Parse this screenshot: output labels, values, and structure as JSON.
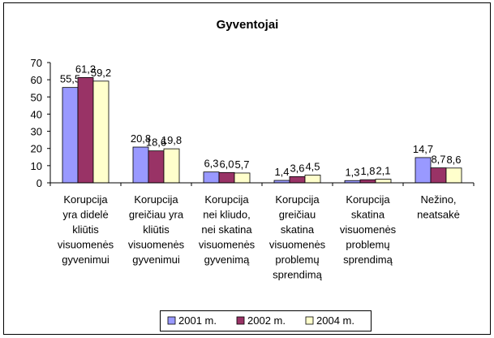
{
  "chart_data": {
    "type": "bar",
    "title": "Gyventojai",
    "categories": [
      [
        "Korupcija",
        "yra didelė",
        "kliūtis",
        "visuomenės",
        "gyvenimui"
      ],
      [
        "Korupcija",
        "greičiau yra",
        "kliūtis",
        "visuomenės",
        "gyvenimui"
      ],
      [
        "Korupcija",
        "nei kliudo,",
        "nei skatina",
        "visuomenės",
        "gyvenimą"
      ],
      [
        "Korupcija",
        "greičiau",
        "skatina",
        "visuomenės",
        "problemų",
        "sprendimą"
      ],
      [
        "Korupcija",
        "skatina",
        "visuomenės",
        "problemų",
        "sprendimą"
      ],
      [
        "Nežino,",
        "neatsakė"
      ]
    ],
    "series": [
      {
        "name": "2001 m.",
        "color": "#9999ff",
        "values": [
          55.5,
          20.8,
          6.3,
          1.4,
          1.3,
          14.7
        ],
        "value_labels": [
          "55,5",
          "20,8",
          "6,3",
          "1,4",
          "1,3",
          "14,7"
        ]
      },
      {
        "name": "2002 m.",
        "color": "#993366",
        "values": [
          61.3,
          18.6,
          6.0,
          3.6,
          1.8,
          8.7
        ],
        "value_labels": [
          "61,3",
          "18,6",
          "6,0",
          "3,6",
          "1,8",
          "8,7"
        ]
      },
      {
        "name": "2004 m.",
        "color": "#ffffcc",
        "values": [
          59.2,
          19.8,
          5.7,
          4.5,
          2.1,
          8.6
        ],
        "value_labels": [
          "59,2",
          "19,8",
          "5,7",
          "4,5",
          "2,1",
          "8,6"
        ]
      }
    ],
    "ylim": [
      0,
      70
    ],
    "yticks": [
      0,
      10,
      20,
      30,
      40,
      50,
      60,
      70
    ],
    "grid": false,
    "legend": "bottom"
  }
}
